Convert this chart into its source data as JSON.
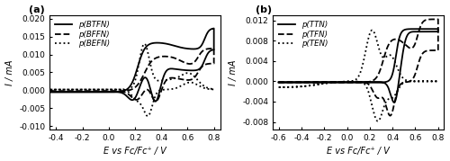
{
  "panel_a": {
    "label": "(a)",
    "xlim": [
      -0.45,
      0.85
    ],
    "ylim": [
      -0.011,
      0.021
    ],
    "xticks": [
      -0.4,
      -0.2,
      0.0,
      0.2,
      0.4,
      0.6,
      0.8
    ],
    "yticks": [
      -0.01,
      -0.005,
      0.0,
      0.005,
      0.01,
      0.015,
      0.02
    ],
    "xlabel": "E vs Fc/Fc⁺ / V",
    "ylabel": "I / mA",
    "legend": [
      "p(BTFN)",
      "p(BFFN)",
      "p(BEFN)"
    ],
    "legend_styles": [
      "solid",
      "dashed",
      "dotted"
    ]
  },
  "panel_b": {
    "label": "(b)",
    "xlim": [
      -0.65,
      0.85
    ],
    "ylim": [
      -0.0095,
      0.013
    ],
    "xticks": [
      -0.6,
      -0.4,
      -0.2,
      0.0,
      0.2,
      0.4,
      0.6,
      0.8
    ],
    "yticks": [
      -0.008,
      -0.004,
      0.0,
      0.004,
      0.008,
      0.012
    ],
    "xlabel": "E vs Fc/Fc⁺ / V",
    "ylabel": "I / mA",
    "legend": [
      "p(TTN)",
      "p(TFN)",
      "p(TEN)"
    ],
    "legend_styles": [
      "solid",
      "dashed",
      "dotted"
    ]
  },
  "line_color": "#000000",
  "bg_color": "#ffffff",
  "fontsize": 7.0,
  "legend_fontsize": 6.2,
  "label_fontsize": 8
}
